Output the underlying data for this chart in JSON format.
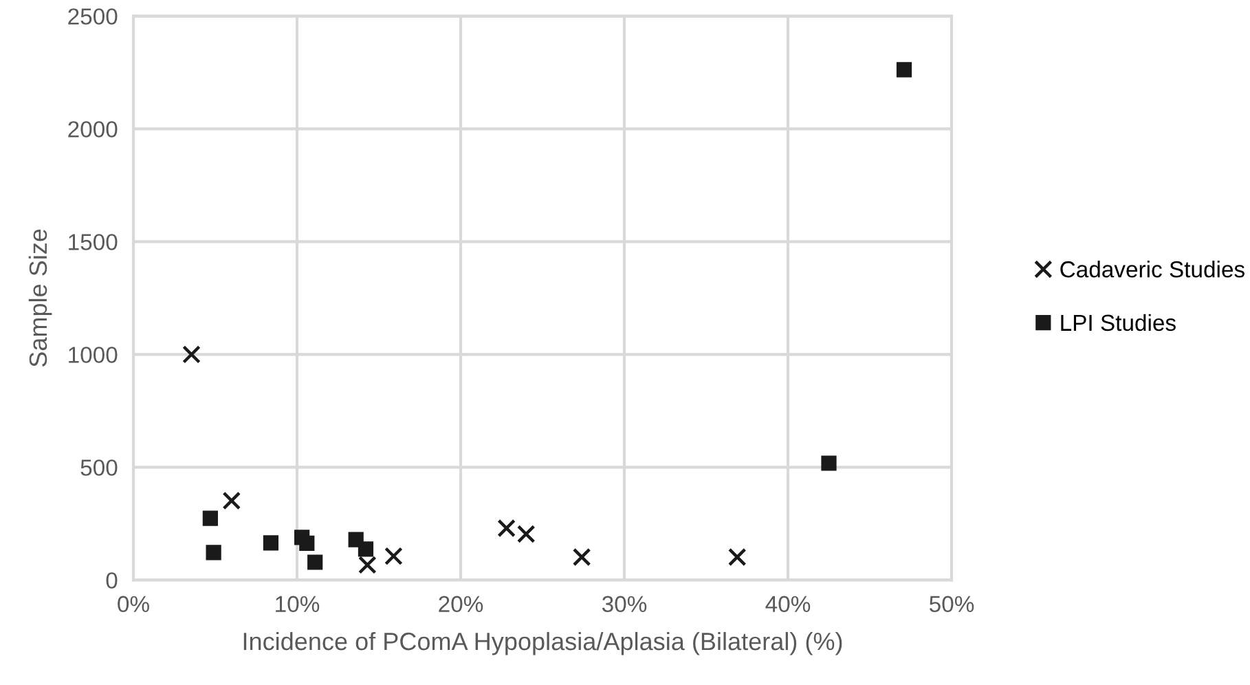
{
  "chart_data": {
    "type": "scatter",
    "xlabel": "Incidence of PComA Hypoplasia/Aplasia (Bilateral) (%)",
    "ylabel": "Sample Size",
    "xlim": [
      0,
      50
    ],
    "xticks": [
      {
        "value": 0,
        "label": "0%"
      },
      {
        "value": 10,
        "label": "10%"
      },
      {
        "value": 20,
        "label": "20%"
      },
      {
        "value": 30,
        "label": "30%"
      },
      {
        "value": 40,
        "label": "40%"
      },
      {
        "value": 50,
        "label": "50%"
      }
    ],
    "ylim": [
      0,
      2500
    ],
    "yticks": [
      0,
      500,
      1000,
      1500,
      2000,
      2500
    ],
    "grid": true,
    "legend": "right",
    "series": [
      {
        "name": "Cadaveric Studies",
        "color": "#1a1a1a",
        "marker": "cross",
        "x": [
          3.55,
          6.0,
          14.3,
          15.9,
          22.8,
          24.0,
          27.4,
          36.9
        ],
        "values": [
          1000,
          352,
          67,
          106,
          230,
          204,
          102,
          102
        ]
      },
      {
        "name": "LPI Studies",
        "color": "#1a1a1a",
        "marker": "square",
        "x": [
          4.7,
          4.9,
          8.4,
          10.3,
          10.6,
          11.1,
          13.6,
          14.2,
          42.5,
          47.1
        ],
        "values": [
          274,
          122,
          165,
          189,
          163,
          79,
          179,
          137,
          518,
          2262
        ]
      }
    ]
  }
}
